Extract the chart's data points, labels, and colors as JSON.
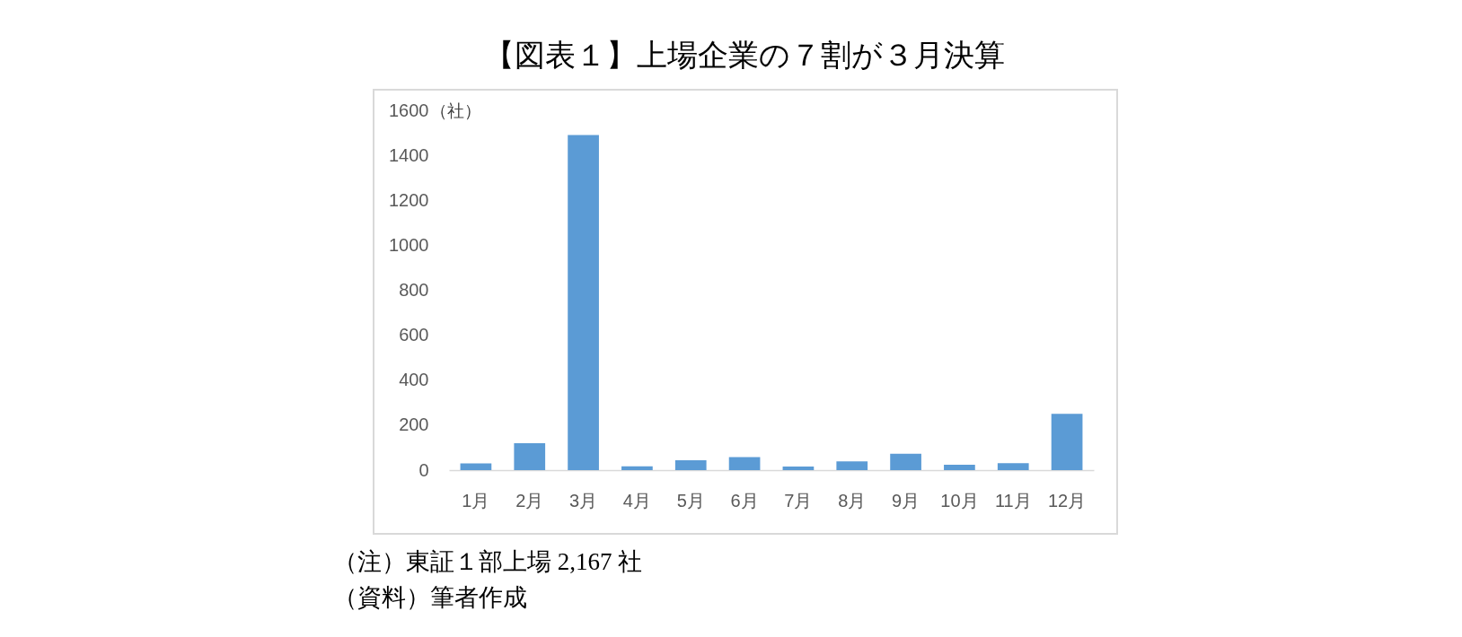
{
  "chart_data": {
    "type": "bar",
    "title": "【図表１】上場企業の７割が３月決算",
    "ylabel": "（社）",
    "categories": [
      "1月",
      "2月",
      "3月",
      "4月",
      "5月",
      "6月",
      "7月",
      "8月",
      "9月",
      "10月",
      "11月",
      "12月"
    ],
    "values": [
      30,
      120,
      1490,
      17,
      44,
      58,
      16,
      39,
      73,
      24,
      31,
      250
    ],
    "color": "#5b9bd5",
    "ylim": [
      0,
      1600
    ],
    "yticks": [
      0,
      200,
      400,
      600,
      800,
      1000,
      1200,
      1400,
      1600
    ],
    "annotations": [
      "（注）東証１部上場 2,167 社",
      "（資料）筆者作成"
    ]
  }
}
